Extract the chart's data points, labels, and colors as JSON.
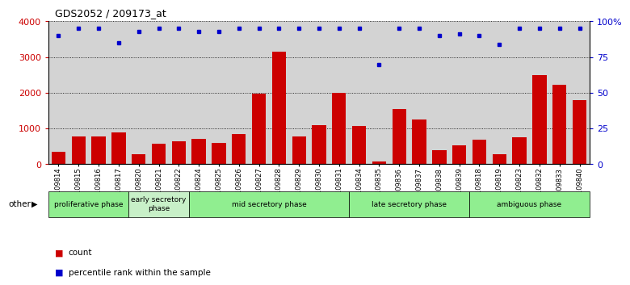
{
  "title": "GDS2052 / 209173_at",
  "samples": [
    "GSM109814",
    "GSM109815",
    "GSM109816",
    "GSM109817",
    "GSM109820",
    "GSM109821",
    "GSM109822",
    "GSM109824",
    "GSM109825",
    "GSM109826",
    "GSM109827",
    "GSM109828",
    "GSM109829",
    "GSM109830",
    "GSM109831",
    "GSM109834",
    "GSM109835",
    "GSM109836",
    "GSM109837",
    "GSM109838",
    "GSM109839",
    "GSM109818",
    "GSM109819",
    "GSM109823",
    "GSM109832",
    "GSM109833",
    "GSM109840"
  ],
  "counts": [
    350,
    780,
    770,
    900,
    280,
    580,
    650,
    720,
    590,
    850,
    1980,
    3150,
    770,
    1090,
    2000,
    1080,
    80,
    1550,
    1250,
    400,
    520,
    680,
    280,
    760,
    2500,
    2230,
    1800
  ],
  "percentile": [
    90,
    95,
    95,
    85,
    93,
    95,
    95,
    93,
    93,
    95,
    95,
    95,
    95,
    95,
    95,
    95,
    70,
    95,
    95,
    90,
    91,
    90,
    84,
    95,
    95,
    95,
    95
  ],
  "phases": [
    {
      "name": "proliferative phase",
      "start": 0,
      "end": 4,
      "color": "#90EE90"
    },
    {
      "name": "early secretory\nphase",
      "start": 4,
      "end": 7,
      "color": "#c8f0c8"
    },
    {
      "name": "mid secretory phase",
      "start": 7,
      "end": 15,
      "color": "#90EE90"
    },
    {
      "name": "late secretory phase",
      "start": 15,
      "end": 21,
      "color": "#90EE90"
    },
    {
      "name": "ambiguous phase",
      "start": 21,
      "end": 27,
      "color": "#90EE90"
    }
  ],
  "bar_color": "#cc0000",
  "dot_color": "#0000cc",
  "ylim_left": [
    0,
    4000
  ],
  "ylim_right": [
    0,
    100
  ],
  "yticks_left": [
    0,
    1000,
    2000,
    3000,
    4000
  ],
  "ytick_labels_left": [
    "0",
    "1000",
    "2000",
    "3000",
    "4000"
  ],
  "yticks_right": [
    0,
    25,
    50,
    75,
    100
  ],
  "ytick_labels_right": [
    "0",
    "25",
    "50",
    "75",
    "100%"
  ],
  "legend_count_color": "#cc0000",
  "legend_percentile_color": "#0000cc",
  "bg_color": "#d3d3d3",
  "phase_bar_colors": [
    "#90EE90",
    "#c8f0c8",
    "#90EE90",
    "#90EE90",
    "#90EE90"
  ]
}
